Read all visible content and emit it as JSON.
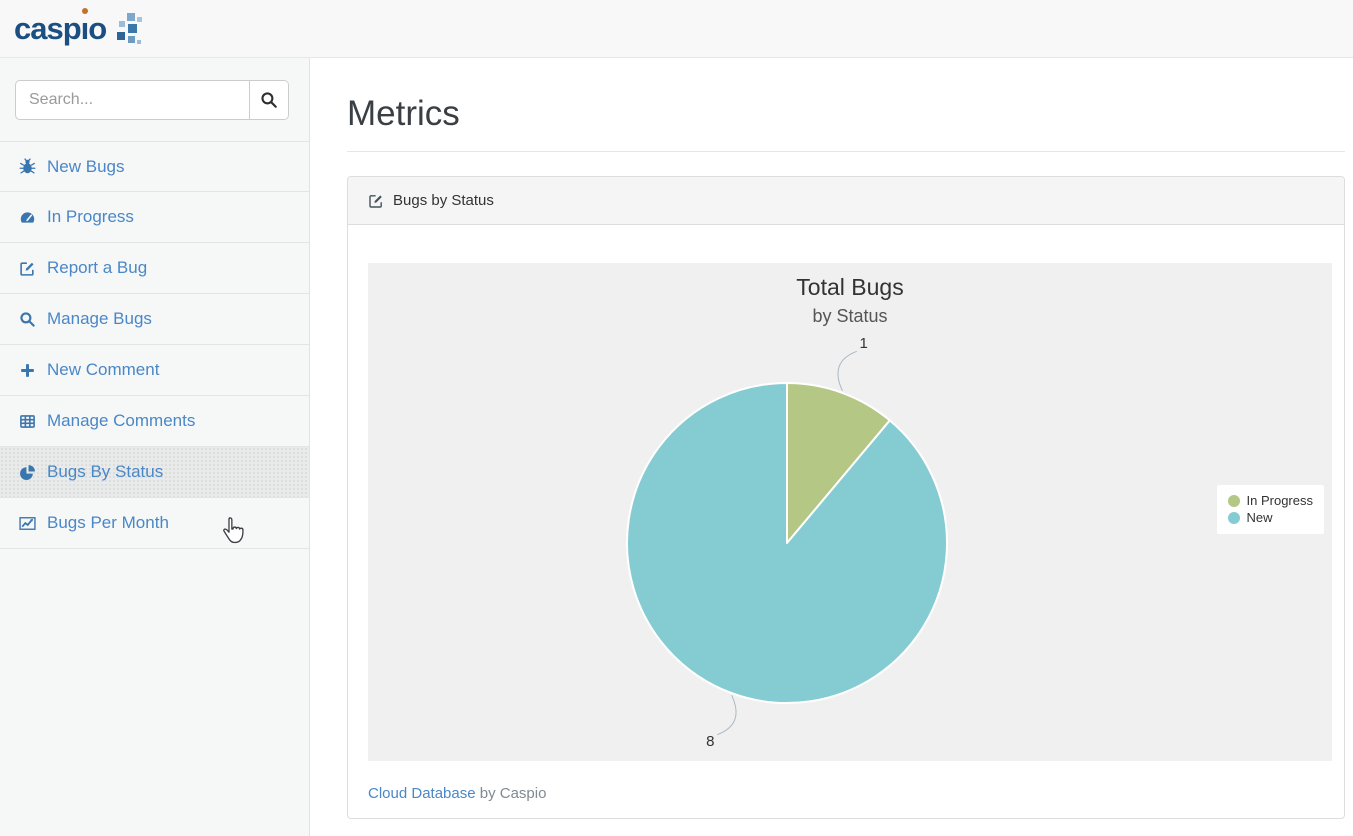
{
  "header": {
    "logo_text": "caspio"
  },
  "sidebar": {
    "search": {
      "placeholder": "Search...",
      "value": ""
    },
    "items": [
      {
        "label": "New Bugs",
        "icon": "bug",
        "active": false
      },
      {
        "label": "In Progress",
        "icon": "tachometer",
        "active": false
      },
      {
        "label": "Report a Bug",
        "icon": "edit",
        "active": false
      },
      {
        "label": "Manage Bugs",
        "icon": "search",
        "active": false
      },
      {
        "label": "New Comment",
        "icon": "plus",
        "active": false
      },
      {
        "label": "Manage Comments",
        "icon": "table",
        "active": false
      },
      {
        "label": "Bugs By Status",
        "icon": "pie-chart",
        "active": true
      },
      {
        "label": "Bugs Per Month",
        "icon": "line-chart",
        "active": false
      }
    ]
  },
  "main": {
    "page_title": "Metrics",
    "panel": {
      "title": "Bugs by Status",
      "footer": {
        "link": "Cloud Database",
        "suffix": " by Caspio"
      }
    }
  },
  "chart_data": {
    "type": "pie",
    "title": "Total Bugs",
    "subtitle": "by Status",
    "series": [
      {
        "name": "In Progress",
        "value": 1,
        "color": "#b4c785"
      },
      {
        "name": "New",
        "value": 8,
        "color": "#85ccd2"
      }
    ],
    "start_angle_deg": 0,
    "direction": "clockwise",
    "data_labels_shown": [
      "1",
      "8"
    ],
    "legend_position": "right",
    "plot_background": "#f0f0f0"
  },
  "colors": {
    "brand_navy": "#1b4f82",
    "brand_orange": "#c2702a",
    "link_blue": "#4a87c7",
    "sidebar_icon_blue": "#3a76ae",
    "slice_green": "#b4c785",
    "slice_teal": "#85ccd2"
  }
}
